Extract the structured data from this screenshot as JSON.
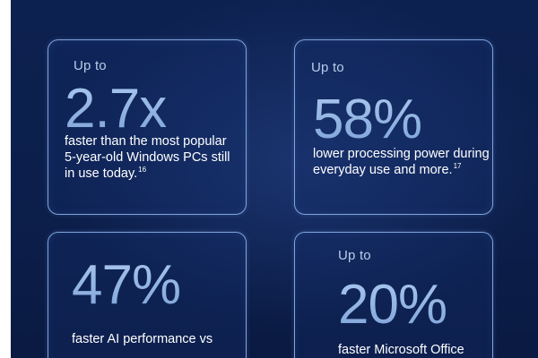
{
  "stats": [
    {
      "prefix": "Up to",
      "value": "2.7x",
      "description": "faster than the most popular 5-year-old Windows PCs still in use today.",
      "footnote": "16"
    },
    {
      "prefix": "Up to",
      "value": "58%",
      "description": "lower processing power during everyday use and more.",
      "footnote": "17"
    },
    {
      "prefix": "",
      "value": "47%",
      "description": "faster AI performance vs",
      "footnote": ""
    },
    {
      "prefix": "Up to",
      "value": "20%",
      "description": "faster Microsoft Office productivity than",
      "footnote": ""
    }
  ],
  "colors": {
    "background": "#0c1f4c",
    "card_border": "#7ea4dc",
    "stat_value": "#a9c6ee",
    "prefix_text": "#b8cdea",
    "description_text": "#ffffff"
  }
}
